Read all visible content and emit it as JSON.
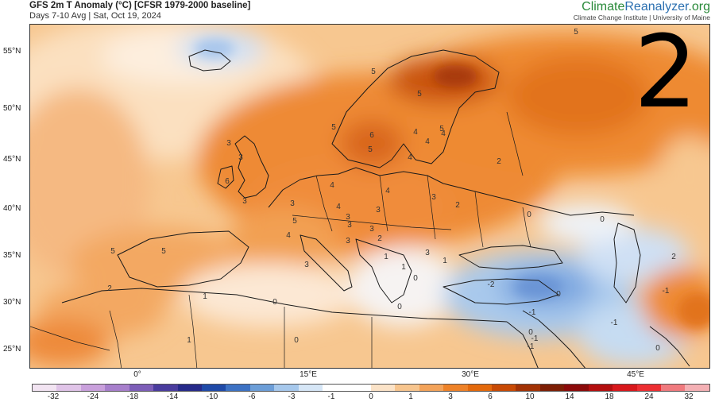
{
  "header": {
    "title": "GFS 2m T Anomaly (°C) [CFSR 1979-2000 baseline]",
    "subtitle": "Days 7-10 Avg | Sat, Oct 19, 2024"
  },
  "brand": {
    "part1": "Climate",
    "part2": "Reanalyzer",
    "part3": ".org",
    "subtitle": "Climate Change Institute | University of Maine"
  },
  "overlay_number": "2",
  "map": {
    "lat_labels": [
      "55°N",
      "50°N",
      "45°N",
      "40°N",
      "35°N",
      "30°N",
      "25°N"
    ],
    "lon_labels": [
      "0°",
      "15°E",
      "30°E",
      "45°E"
    ],
    "contour_labels": [
      "5",
      "5",
      "5",
      "5",
      "5",
      "6",
      "5",
      "4",
      "4",
      "4",
      "4",
      "3",
      "3",
      "6",
      "4",
      "4",
      "3",
      "3",
      "3",
      "4",
      "3",
      "5",
      "3",
      "4",
      "3",
      "3",
      "2",
      "2",
      "3",
      "2",
      "3",
      "1",
      "1",
      "2",
      "5",
      "5",
      "3",
      "1",
      "1",
      "0",
      "0",
      "1",
      "0",
      "0",
      "0",
      "-2",
      "0",
      "-1",
      "-1",
      "-1",
      "0",
      "-1",
      "-1",
      "2",
      "0",
      "0"
    ]
  },
  "colorbar": {
    "labels": [
      "-32",
      "-24",
      "-18",
      "-14",
      "-10",
      "-6",
      "-3",
      "-1",
      "0",
      "1",
      "3",
      "6",
      "10",
      "14",
      "18",
      "24",
      "32"
    ],
    "colors": [
      "#f2e4f2",
      "#e0c4e8",
      "#c9a0dc",
      "#a77fcc",
      "#7d5eb8",
      "#4a3c9e",
      "#262a8a",
      "#1f4aa8",
      "#3d72c4",
      "#6c9ed8",
      "#a6c8ec",
      "#d6e6f6",
      "#ffffff",
      "#ffffff",
      "#fbe3c8",
      "#f7c58e",
      "#f3a35a",
      "#ee8228",
      "#e3690c",
      "#c84a05",
      "#a23205",
      "#7d1e05",
      "#8b0a0a",
      "#b30f0f",
      "#d8181c",
      "#ec2e32",
      "#f07a7e",
      "#f4b0b4"
    ]
  }
}
